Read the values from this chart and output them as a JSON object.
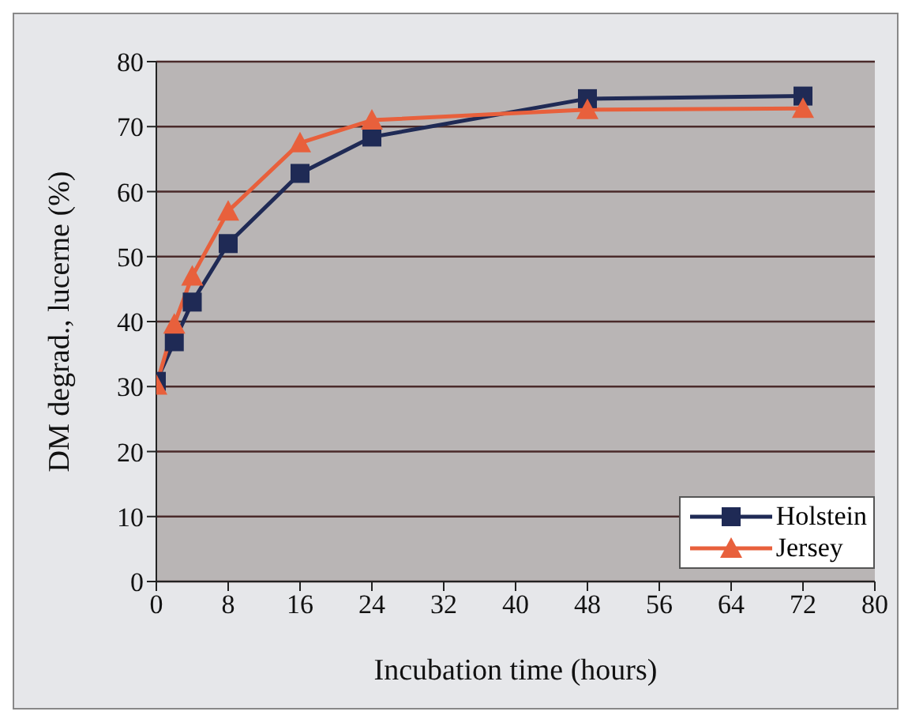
{
  "chart_data": {
    "type": "line",
    "xlabel": "Incubation time (hours)",
    "ylabel": "DM degrad., lucerne (%)",
    "x": [
      0,
      2,
      4,
      8,
      16,
      24,
      48,
      72
    ],
    "series": [
      {
        "name": "Holstein",
        "color": "#1f2a55",
        "marker": "square",
        "values": [
          30.8,
          36.9,
          43,
          52,
          62.8,
          68.4,
          74.3,
          74.7
        ]
      },
      {
        "name": "Jersey",
        "color": "#e8603c",
        "marker": "triangle",
        "values": [
          30.2,
          39.6,
          47,
          57,
          67.5,
          71,
          72.6,
          72.8
        ]
      }
    ],
    "xlim": [
      0,
      80
    ],
    "xticks": [
      0,
      8,
      16,
      24,
      32,
      40,
      48,
      56,
      64,
      72,
      80
    ],
    "ylim": [
      0,
      80
    ],
    "yticks": [
      0,
      10,
      20,
      30,
      40,
      50,
      60,
      70,
      80
    ],
    "grid": "y",
    "legend": "bottom right"
  }
}
